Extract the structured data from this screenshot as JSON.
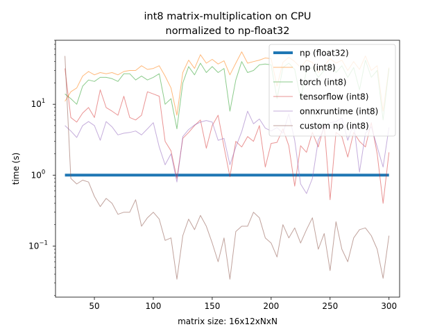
{
  "chart_data": {
    "type": "line",
    "title_line1": "int8 matrix-multiplication on CPU",
    "title_line2": "normalized to np-float32",
    "xlabel": "matrix size: 16x12xNxN",
    "ylabel": "time (s)",
    "xlim": [
      17,
      309
    ],
    "ylim": [
      0.019,
      80
    ],
    "yscale": "log",
    "legend_position": "top-right",
    "x_ticks": [
      {
        "value": 50,
        "label": "50"
      },
      {
        "value": 100,
        "label": "100"
      },
      {
        "value": 150,
        "label": "150"
      },
      {
        "value": 200,
        "label": "200"
      },
      {
        "value": 250,
        "label": "250"
      },
      {
        "value": 300,
        "label": "300"
      }
    ],
    "y_ticks": [
      {
        "value": 0.1,
        "base": "10",
        "exp": "−1"
      },
      {
        "value": 1,
        "base": "10",
        "exp": "0"
      },
      {
        "value": 10,
        "base": "10",
        "exp": "1"
      }
    ],
    "x": [
      25,
      30,
      35,
      40,
      45,
      50,
      55,
      60,
      65,
      70,
      75,
      80,
      85,
      90,
      95,
      100,
      105,
      110,
      115,
      120,
      125,
      130,
      135,
      140,
      145,
      150,
      155,
      160,
      165,
      170,
      175,
      180,
      185,
      190,
      195,
      200,
      205,
      210,
      215,
      220,
      225,
      230,
      235,
      240,
      245,
      250,
      255,
      260,
      265,
      270,
      275,
      280,
      285,
      290,
      295,
      300
    ],
    "series": [
      {
        "name": "np (float32)",
        "color": "#1f77b4",
        "width": 4,
        "opacity": 1,
        "values": [
          1,
          1,
          1,
          1,
          1,
          1,
          1,
          1,
          1,
          1,
          1,
          1,
          1,
          1,
          1,
          1,
          1,
          1,
          1,
          1,
          1,
          1,
          1,
          1,
          1,
          1,
          1,
          1,
          1,
          1,
          1,
          1,
          1,
          1,
          1,
          1,
          1,
          1,
          1,
          1,
          1,
          1,
          1,
          1,
          1,
          1,
          1,
          1,
          1,
          1,
          1,
          1,
          1,
          1,
          1,
          1
        ]
      },
      {
        "name": "np (int8)",
        "color": "#ff7f0e",
        "width": 1,
        "opacity": 0.55,
        "values": [
          11,
          15,
          17,
          25,
          29,
          26,
          28,
          27,
          28,
          26,
          29,
          30,
          30,
          35,
          31,
          32,
          35,
          25,
          17,
          7,
          28,
          42,
          32,
          50,
          38,
          43,
          37,
          41,
          26,
          38,
          55,
          38,
          40,
          42,
          45,
          44,
          18,
          39,
          46,
          40,
          33,
          42,
          39,
          28,
          35,
          44,
          38,
          42,
          30,
          40,
          31,
          48,
          30,
          35,
          8,
          33
        ]
      },
      {
        "name": "torch (int8)",
        "color": "#2ca02c",
        "width": 1,
        "opacity": 0.55,
        "values": [
          14,
          12,
          10,
          18,
          22,
          21,
          24,
          24,
          23,
          21,
          27,
          27,
          22,
          25,
          22,
          24,
          27,
          10,
          12,
          4.5,
          20,
          34,
          26,
          38,
          28,
          34,
          28,
          32,
          8,
          22,
          40,
          28,
          30,
          36,
          37,
          36,
          12,
          33,
          38,
          31,
          12,
          30,
          33,
          24,
          30,
          37,
          28,
          35,
          24,
          33,
          16,
          42,
          24,
          30,
          6,
          32
        ]
      },
      {
        "name": "tensorflow (int8)",
        "color": "#d62728",
        "width": 1,
        "opacity": 0.5,
        "values": [
          32,
          6.5,
          5.6,
          7.5,
          9,
          6.5,
          16,
          9,
          8,
          7,
          13,
          6.5,
          6,
          7,
          15,
          14,
          13,
          3,
          2.2,
          0.9,
          3.3,
          4,
          5,
          6,
          2.4,
          5,
          7,
          2.5,
          0.95,
          3,
          2.5,
          3.5,
          3,
          5,
          1.3,
          2.8,
          2.9,
          4.5,
          2.6,
          0.7,
          2.6,
          2.1,
          4,
          2.5,
          5,
          0.45,
          4,
          3.5,
          1.8,
          4,
          3,
          2.5,
          5.5,
          2,
          0.4,
          2.1
        ]
      },
      {
        "name": "onnxruntime (int8)",
        "color": "#9467bd",
        "width": 1,
        "opacity": 0.55,
        "values": [
          5,
          4.2,
          3.4,
          5,
          5.7,
          5,
          3.1,
          5.7,
          4.8,
          3.7,
          3.9,
          4,
          4.2,
          3.7,
          4.5,
          5.5,
          2.5,
          1.4,
          2,
          0.8,
          3.5,
          4.4,
          5.1,
          5.6,
          5.9,
          5.6,
          3.1,
          3.3,
          1.4,
          2.5,
          4.1,
          8,
          5.3,
          6.2,
          4.6,
          4.2,
          4.7,
          3.9,
          7.3,
          3.1,
          0.75,
          0.55,
          0.9,
          3.1,
          4.6,
          5.5,
          5.7,
          6.4,
          3.1,
          5.4,
          1.1,
          3.9,
          4.8,
          2.5,
          1.3,
          4.7
        ]
      },
      {
        "name": "custom np (int8)",
        "color": "#8c564b",
        "width": 1,
        "opacity": 0.55,
        "values": [
          48,
          0.9,
          0.75,
          0.85,
          0.8,
          0.5,
          0.36,
          0.47,
          0.4,
          0.28,
          0.3,
          0.3,
          0.45,
          0.19,
          0.25,
          0.3,
          0.24,
          0.12,
          0.13,
          0.034,
          0.14,
          0.24,
          0.17,
          0.27,
          0.19,
          0.11,
          0.06,
          0.13,
          0.034,
          0.16,
          0.19,
          0.19,
          0.3,
          0.25,
          0.13,
          0.11,
          0.07,
          0.2,
          0.13,
          0.18,
          0.11,
          0.17,
          0.25,
          0.09,
          0.15,
          0.045,
          0.22,
          0.09,
          0.06,
          0.13,
          0.17,
          0.18,
          0.14,
          0.09,
          0.035,
          0.14
        ]
      }
    ]
  }
}
